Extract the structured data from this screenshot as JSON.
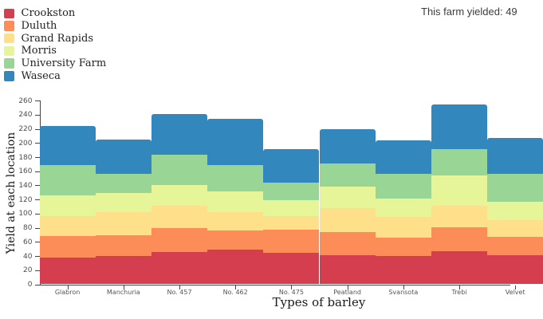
{
  "legend": {
    "items": [
      {
        "label": "Crookston",
        "color": "#d53e4f"
      },
      {
        "label": "Duluth",
        "color": "#fc8d59"
      },
      {
        "label": "Grand Rapids",
        "color": "#fee08b"
      },
      {
        "label": "Morris",
        "color": "#e6f598"
      },
      {
        "label": "University Farm",
        "color": "#99d594"
      },
      {
        "label": "Waseca",
        "color": "#3288bd"
      }
    ]
  },
  "tooltip": {
    "text": "This farm yielded: 49"
  },
  "chart_data": {
    "type": "bar",
    "stacked": true,
    "step_style": true,
    "title": "",
    "xlabel": "Types of barley",
    "ylabel": "Yield at each location",
    "ylim": [
      0,
      260
    ],
    "ytick_step": 20,
    "grid": false,
    "legend_position": "top-left",
    "categories": [
      "Glabron",
      "Manchuria",
      "No. 457",
      "No. 462",
      "No. 475",
      "Peatland",
      "Svansota",
      "Trebi",
      "Velvet"
    ],
    "series": [
      {
        "name": "Crookston",
        "color": "#d53e4f",
        "values": [
          38.13,
          39.93,
          45.67,
          48.57,
          44.1,
          41.6,
          40.47,
          46.93,
          41.33
        ]
      },
      {
        "name": "Duluth",
        "color": "#fc8d59",
        "values": [
          29.67,
          28.97,
          33.6,
          28.1,
          33.07,
          32.0,
          25.7,
          33.93,
          26.3
        ]
      },
      {
        "name": "Grand Rapids",
        "color": "#fee08b",
        "values": [
          29.13,
          32.97,
          32.17,
          24.93,
          19.7,
          34.7,
          29.67,
          29.77,
          23.03
        ]
      },
      {
        "name": "Morris",
        "color": "#e6f598",
        "values": [
          28.77,
          27.43,
          28.7,
          30.37,
          22.6,
          29.87,
          25.77,
          43.77,
          26.13
        ]
      },
      {
        "name": "University Farm",
        "color": "#99d594",
        "values": [
          43.07,
          27.0,
          43.27,
          36.6,
          24.67,
          32.77,
          35.13,
          36.57,
          39.9
        ]
      },
      {
        "name": "Waseca",
        "color": "#3288bd",
        "values": [
          55.2,
          48.87,
          58.1,
          65.77,
          46.77,
          48.57,
          47.33,
          63.83,
          50.23
        ]
      }
    ],
    "column_totals": [
      223.97,
      205.17,
      241.5,
      234.33,
      190.9,
      219.5,
      204.07,
      254.8,
      206.93
    ]
  }
}
